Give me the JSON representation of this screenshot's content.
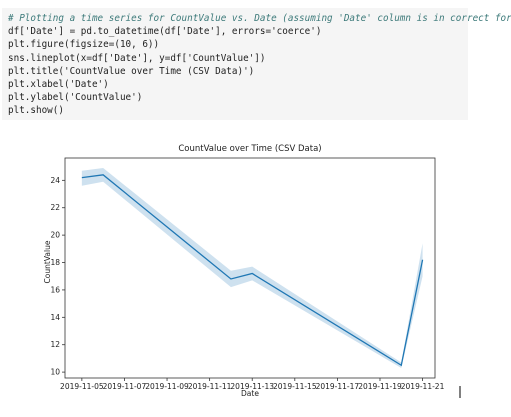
{
  "code": [
    "# Plotting a time series for CountValue vs. Date (assuming 'Date' column is in correct format)",
    "df['Date'] = pd.to_datetime(df['Date'], errors='coerce')",
    "plt.figure(figsize=(10, 6))",
    "sns.lineplot(x=df['Date'], y=df['CountValue'])",
    "plt.title('CountValue over Time (CSV Data)')",
    "plt.xlabel('Date')",
    "plt.ylabel('CountValue')",
    "plt.show()"
  ],
  "chart_data": {
    "type": "line",
    "title": "CountValue over Time (CSV Data)",
    "x_label": "Date",
    "y_label": "CountValue",
    "x": [
      "2019-11-05",
      "2019-11-06",
      "2019-11-12",
      "2019-11-13",
      "2019-11-20",
      "2019-11-21"
    ],
    "series": [
      {
        "color": "#1f77b4",
        "values": [
          24.2,
          24.4,
          16.8,
          17.2,
          10.5,
          18.2
        ],
        "ci_lower": [
          23.6,
          23.9,
          16.2,
          16.7,
          10.3,
          17.0
        ],
        "ci_upper": [
          24.7,
          24.9,
          17.4,
          17.7,
          10.7,
          19.4
        ]
      }
    ],
    "xlim": [
      "2019-11-04T05:00Z",
      "2019-11-21T14:00Z"
    ],
    "xticks": [
      "2019-11-05",
      "2019-11-07",
      "2019-11-09",
      "2019-11-11",
      "2019-11-13",
      "2019-11-15",
      "2019-11-17",
      "2019-11-19",
      "2019-11-21"
    ],
    "ylim": [
      9.57,
      25.63
    ],
    "yticks": [
      10,
      12,
      14,
      16,
      18,
      20,
      22,
      24
    ]
  }
}
